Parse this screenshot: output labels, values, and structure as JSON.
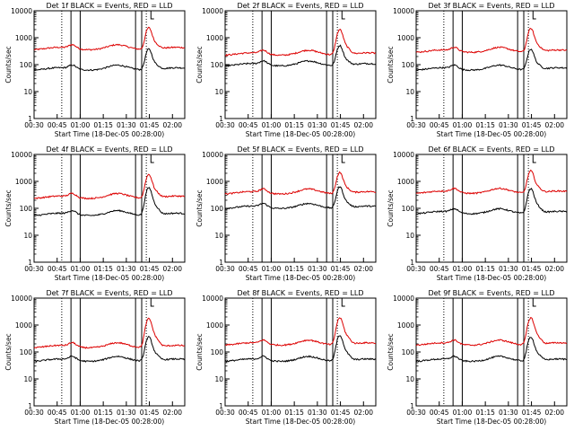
{
  "chart_data": {
    "type": "line",
    "common": {
      "x_tick_labels": [
        "00:30",
        "00:45",
        "01:00",
        "01:15",
        "01:30",
        "01:45",
        "02:00"
      ],
      "x_ticks_min": [
        30,
        45,
        60,
        75,
        90,
        105,
        120
      ],
      "xlim_min": [
        30,
        128
      ],
      "ylim": [
        1,
        10000
      ],
      "y_scale": "log",
      "y_tick_labels": [
        "1",
        "10",
        "100",
        "1000",
        "10000"
      ],
      "y_tick_values": [
        1,
        10,
        100,
        1000,
        10000
      ],
      "ylabel": "Counts/sec",
      "xlabel": "Start Time (18-Dec-05 00:28:00)",
      "dotted_lines_min": [
        48,
        103
      ],
      "solid_lines_min": [
        54,
        60,
        96,
        100
      ],
      "flag_lines_min": [
        106,
        108
      ],
      "series_names": [
        "Events",
        "LLD"
      ],
      "series_colors": [
        "#000000",
        "#dd0000"
      ]
    },
    "panels": [
      {
        "title": "Det 1f BLACK = Events, RED = LLD",
        "lld_base": 400,
        "ev_base": 70,
        "lld_peak": 1900,
        "ev_peak": 300
      },
      {
        "title": "Det 2f BLACK = Events, RED = LLD",
        "lld_base": 250,
        "ev_base": 100,
        "lld_peak": 1700,
        "ev_peak": 400
      },
      {
        "title": "Det 3f BLACK = Events, RED = LLD",
        "lld_base": 320,
        "ev_base": 70,
        "lld_peak": 1800,
        "ev_peak": 300
      },
      {
        "title": "Det 4f BLACK = Events, RED = LLD",
        "lld_base": 260,
        "ev_base": 60,
        "lld_peak": 1500,
        "ev_peak": 500
      },
      {
        "title": "Det 5f BLACK = Events, RED = LLD",
        "lld_base": 380,
        "ev_base": 110,
        "lld_peak": 1700,
        "ev_peak": 500
      },
      {
        "title": "Det 6f BLACK = Events, RED = LLD",
        "lld_base": 400,
        "ev_base": 70,
        "lld_peak": 2000,
        "ev_peak": 450
      },
      {
        "title": "Det 7f BLACK = Events, RED = LLD",
        "lld_base": 160,
        "ev_base": 50,
        "lld_peak": 1500,
        "ev_peak": 300
      },
      {
        "title": "Det 8f BLACK = Events, RED = LLD",
        "lld_base": 200,
        "ev_base": 50,
        "lld_peak": 1600,
        "ev_peak": 350
      },
      {
        "title": "Det 9f BLACK = Events, RED = LLD",
        "lld_base": 200,
        "ev_base": 50,
        "lld_peak": 1600,
        "ev_peak": 300
      }
    ]
  }
}
